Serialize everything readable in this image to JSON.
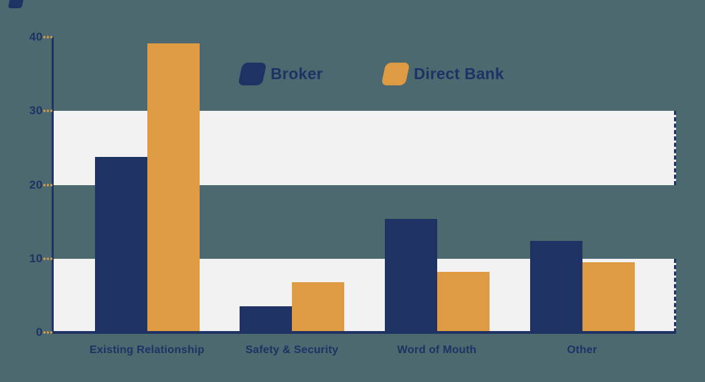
{
  "colors": {
    "background": "#4c6970",
    "navy": "#1e3264",
    "orange": "#de9b44",
    "band": "#f2f2f3"
  },
  "legend": {
    "items": [
      {
        "label": "Broker",
        "color": "#1e3264"
      },
      {
        "label": "Direct Bank",
        "color": "#de9b44"
      }
    ]
  },
  "chart_data": {
    "type": "bar",
    "categories": [
      "Existing Relationship",
      "Safety & Security",
      "Word of Mouth",
      "Other"
    ],
    "series": [
      {
        "name": "Broker",
        "color": "#1e3264",
        "values": [
          23.8,
          3.5,
          15.4,
          12.4
        ]
      },
      {
        "name": "Direct Bank",
        "color": "#de9b44",
        "values": [
          39.2,
          6.8,
          8.2,
          9.5
        ]
      }
    ],
    "title": "",
    "xlabel": "",
    "ylabel": "",
    "ylim": [
      0,
      40
    ],
    "yticks": [
      0,
      10,
      20,
      30,
      40
    ],
    "stripe_bands": [
      [
        0,
        10
      ],
      [
        20,
        30
      ]
    ],
    "grid": false,
    "legend_position": "top-center"
  }
}
